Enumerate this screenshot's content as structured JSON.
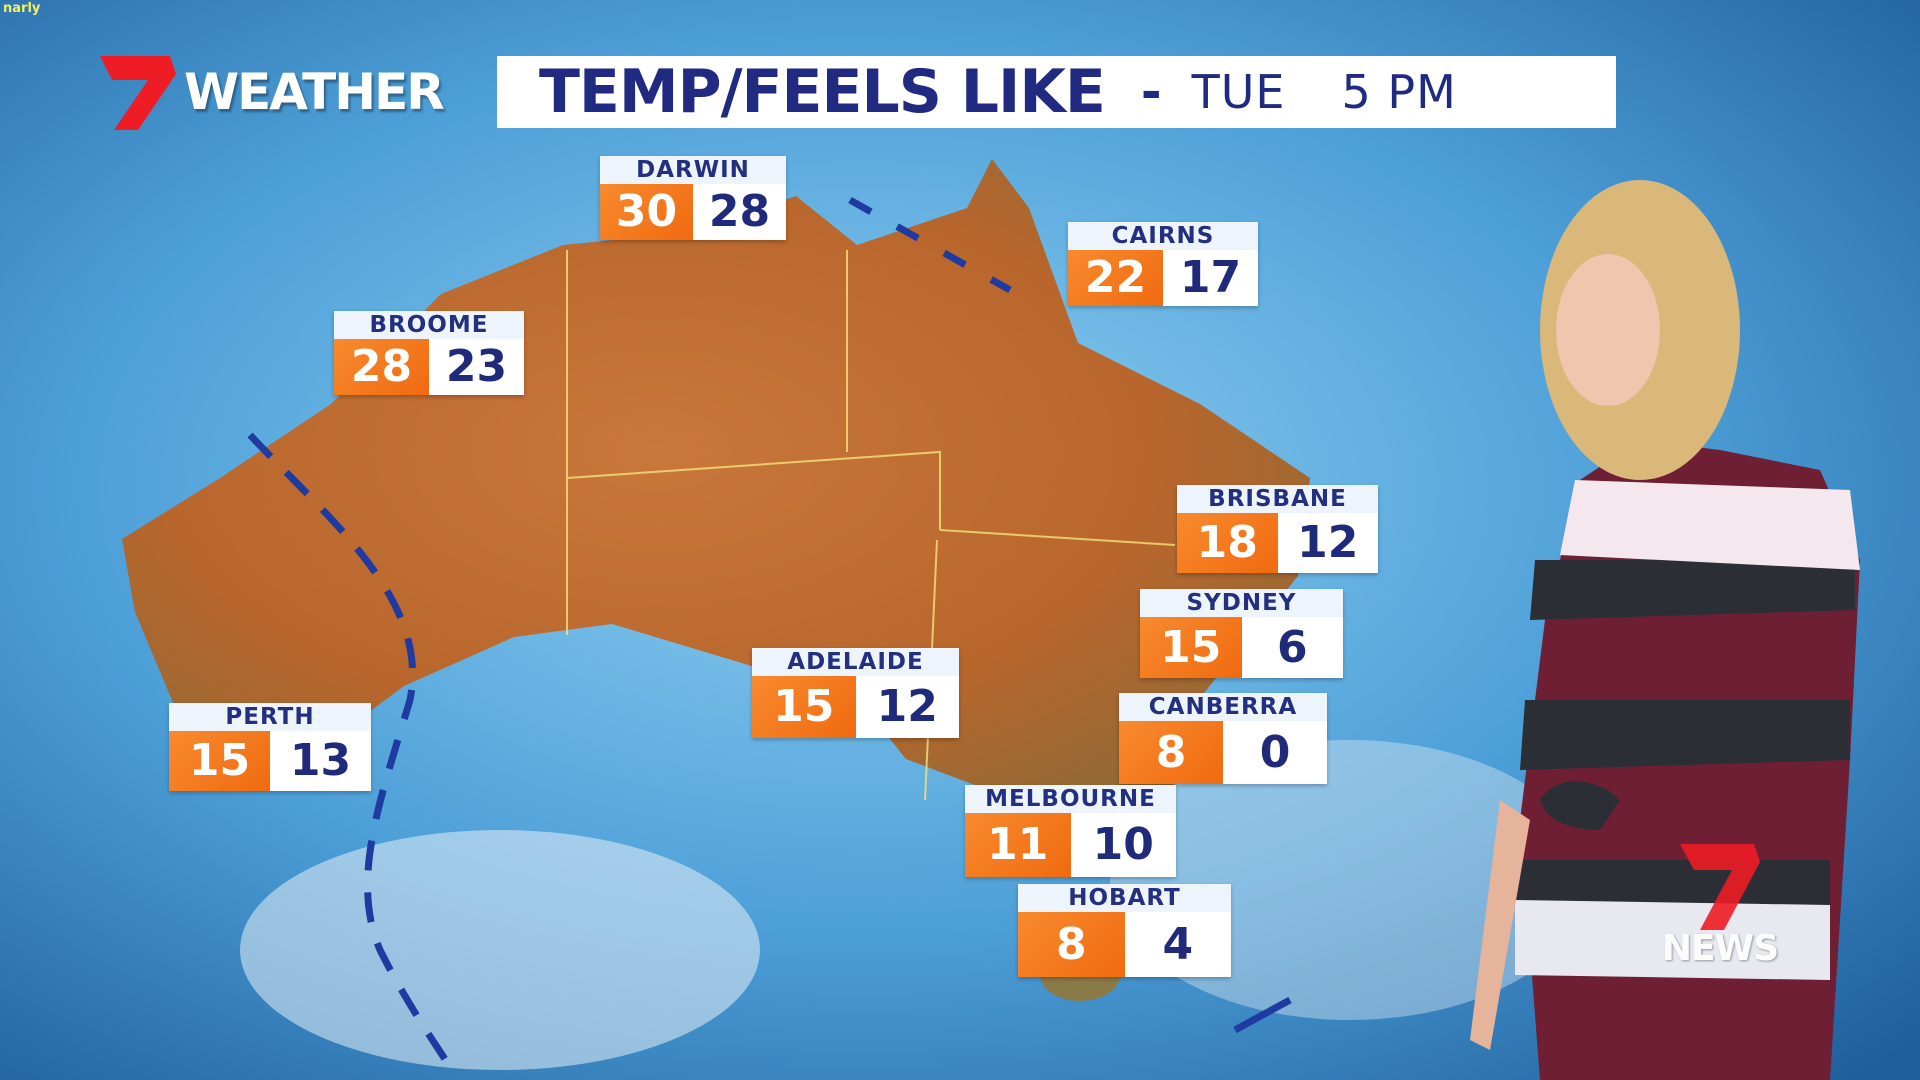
{
  "corner_tag": "narly",
  "logo": {
    "text": "WEATHER",
    "brand_color": "#ee1c25"
  },
  "title": {
    "main": "TEMP/FEELS LIKE",
    "separator": "-",
    "day": "TUE",
    "time": "5 PM",
    "color": "#1f2a80"
  },
  "colors": {
    "temp": "#f27a1f",
    "feels_like": "#ffffff",
    "text": "#1f2a7a"
  },
  "cities": [
    {
      "name": "DARWIN",
      "temp": "30",
      "feels_like": "28"
    },
    {
      "name": "CAIRNS",
      "temp": "22",
      "feels_like": "17"
    },
    {
      "name": "BROOME",
      "temp": "28",
      "feels_like": "23"
    },
    {
      "name": "PERTH",
      "temp": "15",
      "feels_like": "13"
    },
    {
      "name": "ADELAIDE",
      "temp": "15",
      "feels_like": "12"
    },
    {
      "name": "BRISBANE",
      "temp": "18",
      "feels_like": "12"
    },
    {
      "name": "SYDNEY",
      "temp": "15",
      "feels_like": "6"
    },
    {
      "name": "CANBERRA",
      "temp": "8",
      "feels_like": "0"
    },
    {
      "name": "MELBOURNE",
      "temp": "11",
      "feels_like": "10"
    },
    {
      "name": "HOBART",
      "temp": "8",
      "feels_like": "4"
    }
  ],
  "watermark": {
    "text": "NEWS"
  }
}
